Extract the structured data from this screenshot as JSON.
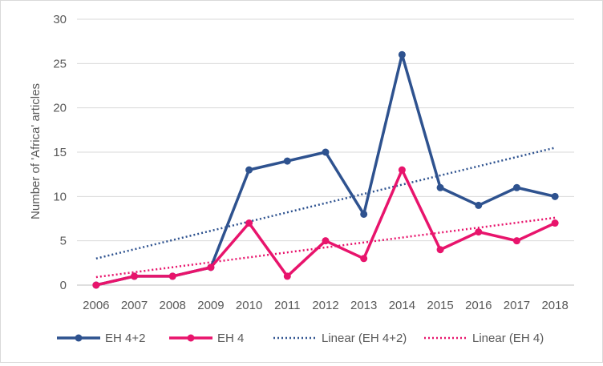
{
  "chart_data": {
    "type": "line",
    "title": "",
    "xlabel": "",
    "ylabel": "Number of 'Africa' articles",
    "x": [
      "2006",
      "2007",
      "2008",
      "2009",
      "2010",
      "2011",
      "2012",
      "2013",
      "2014",
      "2015",
      "2016",
      "2017",
      "2018"
    ],
    "ylim": [
      0,
      30
    ],
    "yticks": [
      0,
      5,
      10,
      15,
      20,
      25,
      30
    ],
    "grid": "horizontal",
    "legend_position": "bottom",
    "series": [
      {
        "name": "EH 4+2",
        "color": "#2e528f",
        "values": [
          0,
          1,
          1,
          2,
          13,
          14,
          15,
          8,
          26,
          11,
          9,
          11,
          10
        ]
      },
      {
        "name": "EH 4",
        "color": "#e8146c",
        "values": [
          0,
          1,
          1,
          2,
          7,
          1,
          5,
          3,
          13,
          4,
          6,
          5,
          7
        ]
      }
    ],
    "trendlines": [
      {
        "name": "Linear (EH 4+2)",
        "color": "#2e528f",
        "style": "dotted",
        "start": 3.0,
        "end": 15.5
      },
      {
        "name": "Linear (EH 4)",
        "color": "#e8146c",
        "style": "dotted",
        "start": 0.9,
        "end": 7.6
      }
    ]
  }
}
